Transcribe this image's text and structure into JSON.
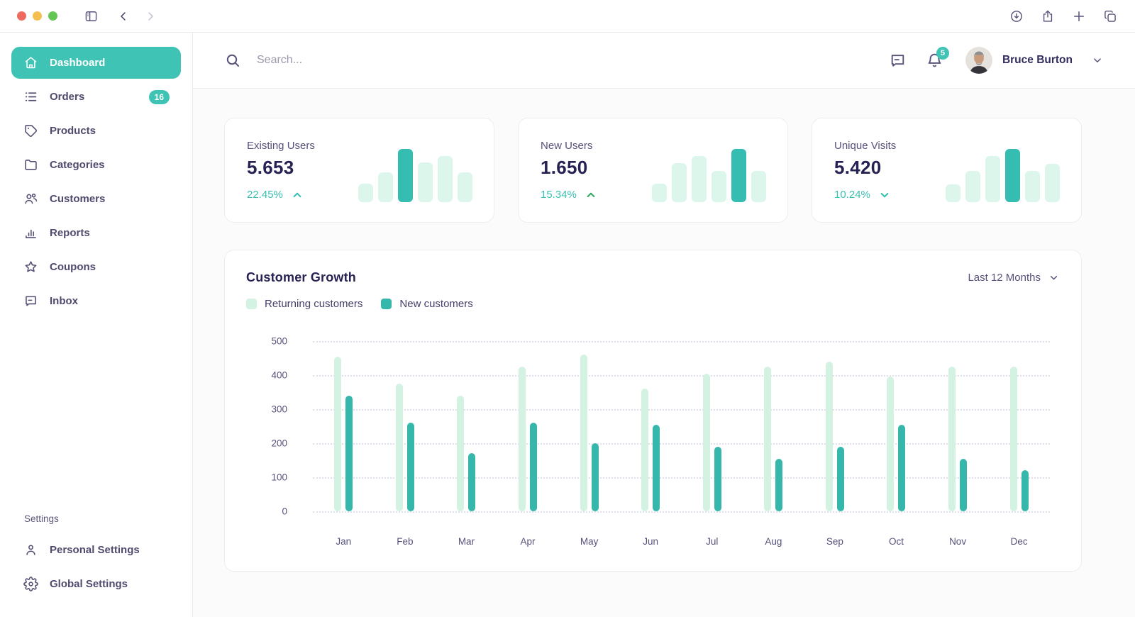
{
  "window": {
    "toolbar": {
      "left_icons": [
        "sidebar-toggle",
        "back",
        "forward"
      ],
      "right_icons": [
        "download",
        "share",
        "new-tab",
        "tab-overview"
      ]
    }
  },
  "sidebar": {
    "items": [
      {
        "label": "Dashboard",
        "icon": "home-icon",
        "active": true
      },
      {
        "label": "Orders",
        "icon": "list-icon",
        "badge": "16"
      },
      {
        "label": "Products",
        "icon": "tag-icon"
      },
      {
        "label": "Categories",
        "icon": "folder-icon"
      },
      {
        "label": "Customers",
        "icon": "users-icon"
      },
      {
        "label": "Reports",
        "icon": "bar-chart-icon"
      },
      {
        "label": "Coupons",
        "icon": "star-icon"
      },
      {
        "label": "Inbox",
        "icon": "message-icon"
      }
    ],
    "settings_label": "Settings",
    "settings_items": [
      {
        "label": "Personal Settings",
        "icon": "person-icon"
      },
      {
        "label": "Global Settings",
        "icon": "gear-icon"
      }
    ]
  },
  "header": {
    "search_placeholder": "Search...",
    "notification_count": "5",
    "user_name": "Bruce Burton"
  },
  "stat_cards": [
    {
      "label": "Existing Users",
      "value": "5.653",
      "percent": "22.45%",
      "trend": "up",
      "trend_arrow_color": "#35bdb2",
      "bars": [
        34,
        56,
        100,
        75,
        87,
        56
      ],
      "highlight_index": 2
    },
    {
      "label": "New Users",
      "value": "1.650",
      "percent": "15.34%",
      "trend": "up",
      "trend_arrow_color": "#27a55a",
      "bars": [
        34,
        73,
        86,
        59,
        100,
        59
      ],
      "highlight_index": 4
    },
    {
      "label": "Unique Visits",
      "value": "5.420",
      "percent": "10.24%",
      "trend": "down",
      "trend_arrow_color": "#35bdb2",
      "bars": [
        33,
        58,
        86,
        100,
        58,
        72
      ],
      "highlight_index": 3
    }
  ],
  "chart_card": {
    "title": "Customer Growth",
    "period": "Last 12 Months",
    "legend": [
      {
        "label": "Returning customers",
        "color": "#d4f2e1"
      },
      {
        "label": "New customers",
        "color": "#35b7ac"
      }
    ]
  },
  "chart_data": {
    "type": "bar",
    "title": "Customer Growth",
    "categories": [
      "Jan",
      "Feb",
      "Mar",
      "Apr",
      "May",
      "Jun",
      "Jul",
      "Aug",
      "Sep",
      "Oct",
      "Nov",
      "Dec"
    ],
    "series": [
      {
        "name": "Returning customers",
        "values": [
          455,
          375,
          340,
          425,
          460,
          360,
          405,
          425,
          440,
          395,
          425,
          425
        ]
      },
      {
        "name": "New customers",
        "values": [
          340,
          260,
          170,
          260,
          200,
          255,
          190,
          155,
          190,
          255,
          155,
          120
        ]
      }
    ],
    "xlabel": "",
    "ylabel": "",
    "ylim": [
      0,
      500
    ],
    "yticks": [
      0,
      100,
      200,
      300,
      400,
      500
    ],
    "grid": true,
    "legend_position": "top-left"
  },
  "colors": {
    "accent": "#3ec3b4",
    "accent_dark": "#35b7ac",
    "mint_light": "#d4f2e1",
    "text_dark": "#272254",
    "text_slate": "#4f4b6e",
    "muted": "#9b99ae",
    "border": "#ecedf1",
    "green_arrow": "#27a55a"
  }
}
